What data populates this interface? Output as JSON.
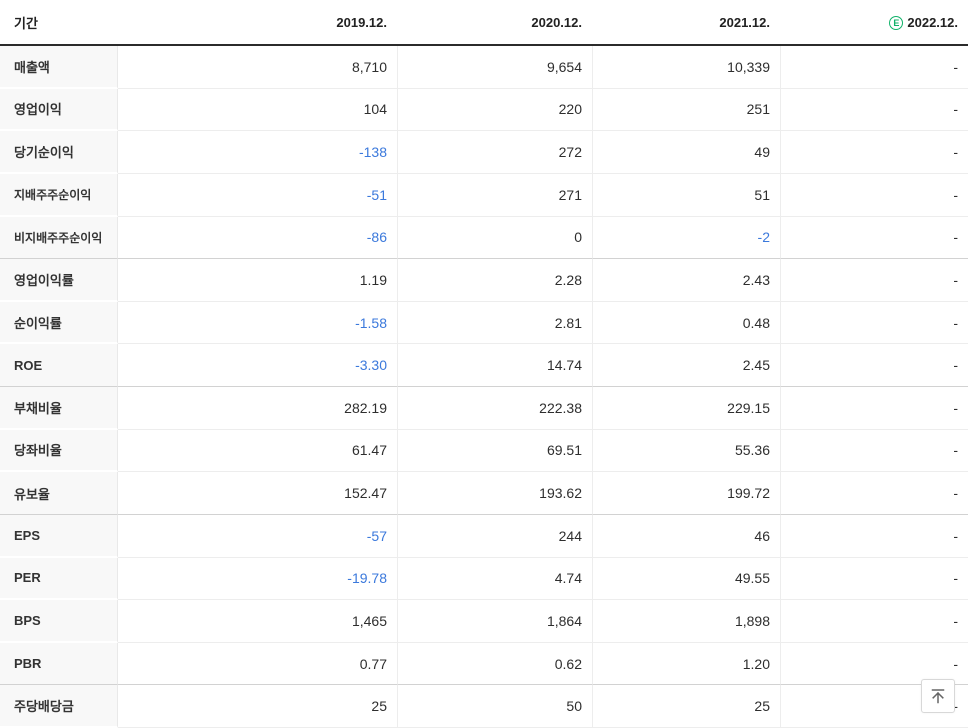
{
  "table": {
    "header": {
      "period_label": "기간",
      "columns": [
        "2019.12.",
        "2020.12.",
        "2021.12.",
        "2022.12."
      ],
      "estimate_badge": "E"
    },
    "rows": [
      {
        "label": "매출액",
        "sub": false,
        "group_end": false,
        "values": [
          "8,710",
          "9,654",
          "10,339",
          "-"
        ],
        "neg": [
          false,
          false,
          false,
          false
        ]
      },
      {
        "label": "영업이익",
        "sub": false,
        "group_end": false,
        "values": [
          "104",
          "220",
          "251",
          "-"
        ],
        "neg": [
          false,
          false,
          false,
          false
        ]
      },
      {
        "label": "당기순이익",
        "sub": false,
        "group_end": false,
        "values": [
          "-138",
          "272",
          "49",
          "-"
        ],
        "neg": [
          true,
          false,
          false,
          false
        ]
      },
      {
        "label": "지배주주순이익",
        "sub": true,
        "group_end": false,
        "values": [
          "-51",
          "271",
          "51",
          "-"
        ],
        "neg": [
          true,
          false,
          false,
          false
        ]
      },
      {
        "label": "비지배주주순이익",
        "sub": true,
        "group_end": true,
        "values": [
          "-86",
          "0",
          "-2",
          "-"
        ],
        "neg": [
          true,
          false,
          true,
          false
        ]
      },
      {
        "label": "영업이익률",
        "sub": false,
        "group_end": false,
        "values": [
          "1.19",
          "2.28",
          "2.43",
          "-"
        ],
        "neg": [
          false,
          false,
          false,
          false
        ]
      },
      {
        "label": "순이익률",
        "sub": false,
        "group_end": false,
        "values": [
          "-1.58",
          "2.81",
          "0.48",
          "-"
        ],
        "neg": [
          true,
          false,
          false,
          false
        ]
      },
      {
        "label": "ROE",
        "sub": false,
        "group_end": true,
        "values": [
          "-3.30",
          "14.74",
          "2.45",
          "-"
        ],
        "neg": [
          true,
          false,
          false,
          false
        ]
      },
      {
        "label": "부채비율",
        "sub": false,
        "group_end": false,
        "values": [
          "282.19",
          "222.38",
          "229.15",
          "-"
        ],
        "neg": [
          false,
          false,
          false,
          false
        ]
      },
      {
        "label": "당좌비율",
        "sub": false,
        "group_end": false,
        "values": [
          "61.47",
          "69.51",
          "55.36",
          "-"
        ],
        "neg": [
          false,
          false,
          false,
          false
        ]
      },
      {
        "label": "유보율",
        "sub": false,
        "group_end": true,
        "values": [
          "152.47",
          "193.62",
          "199.72",
          "-"
        ],
        "neg": [
          false,
          false,
          false,
          false
        ]
      },
      {
        "label": "EPS",
        "sub": false,
        "group_end": false,
        "values": [
          "-57",
          "244",
          "46",
          "-"
        ],
        "neg": [
          true,
          false,
          false,
          false
        ]
      },
      {
        "label": "PER",
        "sub": false,
        "group_end": false,
        "values": [
          "-19.78",
          "4.74",
          "49.55",
          "-"
        ],
        "neg": [
          true,
          false,
          false,
          false
        ]
      },
      {
        "label": "BPS",
        "sub": false,
        "group_end": false,
        "values": [
          "1,465",
          "1,864",
          "1,898",
          "-"
        ],
        "neg": [
          false,
          false,
          false,
          false
        ]
      },
      {
        "label": "PBR",
        "sub": false,
        "group_end": true,
        "values": [
          "0.77",
          "0.62",
          "1.20",
          "-"
        ],
        "neg": [
          false,
          false,
          false,
          false
        ]
      },
      {
        "label": "주당배당금",
        "sub": false,
        "group_end": false,
        "values": [
          "25",
          "50",
          "25",
          "-"
        ],
        "neg": [
          false,
          false,
          false,
          false
        ]
      }
    ]
  },
  "colors": {
    "negative_blue": "#3b79dc",
    "estimate_green": "#10b269",
    "header_border": "#2b2b2b"
  },
  "scroll_top_button": {
    "icon": "arrow-up-to-top"
  }
}
